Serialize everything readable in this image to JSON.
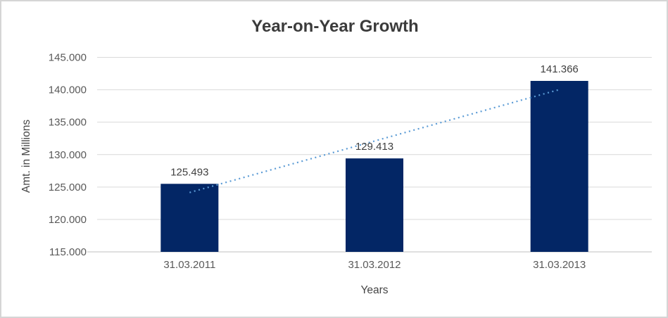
{
  "chart_data": {
    "type": "bar",
    "title": "Year-on-Year Growth",
    "xlabel": "Years",
    "ylabel": "Amt. in Millions",
    "categories": [
      "31.03.2011",
      "31.03.2012",
      "31.03.2013"
    ],
    "values": [
      125493,
      129413,
      141366
    ],
    "data_labels": [
      "125.493",
      "129.413",
      "141.366"
    ],
    "ylim": [
      115000,
      145000
    ],
    "ytick_step": 5000,
    "ytick_labels": [
      "115.000",
      "120.000",
      "125.000",
      "130.000",
      "135.000",
      "140.000",
      "145.000"
    ],
    "grid": true,
    "legend": "none",
    "trendline": {
      "type": "linear",
      "style": "dotted",
      "color": "#5b9bd5"
    },
    "colors": {
      "bar": "#032665",
      "gridline": "#d9d9d9",
      "axis_line": "#bfbfbf",
      "title_text": "#3b3b3b",
      "axis_text": "#595959",
      "label_text": "#404040",
      "frame_border": "#d5d5d5",
      "background": "#ffffff"
    }
  }
}
